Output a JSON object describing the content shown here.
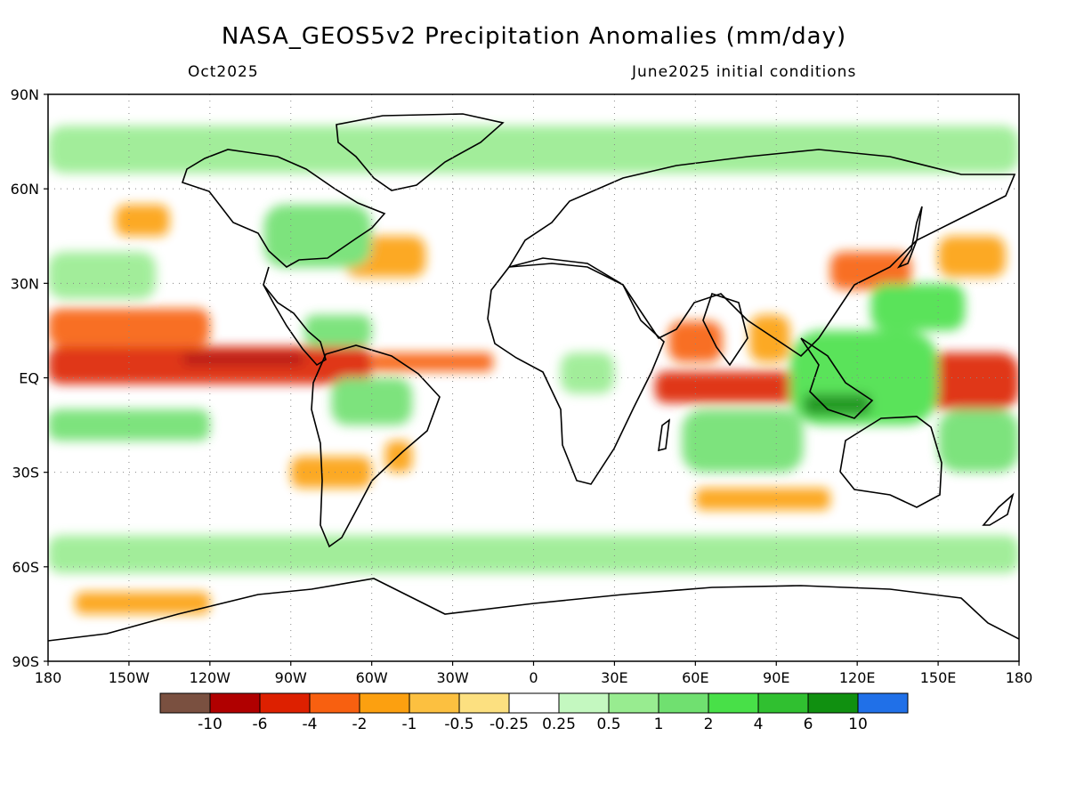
{
  "title": "NASA_GEOS5v2 Precipitation Anomalies (mm/day)",
  "valid_month": "Oct2025",
  "init_note": "June2025 initial conditions",
  "lat_labels": [
    "90N",
    "60N",
    "30N",
    "EQ",
    "30S",
    "60S",
    "90S"
  ],
  "lon_labels": [
    "180",
    "150W",
    "120W",
    "90W",
    "60W",
    "30W",
    "0",
    "30E",
    "60E",
    "90E",
    "120E",
    "150E",
    "180"
  ],
  "colorbar": {
    "colors": [
      "#7a5040",
      "#b00000",
      "#dd2000",
      "#f86010",
      "#fca010",
      "#fcc040",
      "#fce080",
      "#ffffff",
      "#c4f8c0",
      "#98ec90",
      "#70e070",
      "#48e048",
      "#30c030",
      "#109010",
      "#2070e8"
    ],
    "labels": [
      "-10",
      "-6",
      "-4",
      "-2",
      "-1",
      "-0.5",
      "-0.25",
      "0.25",
      "0.5",
      "1",
      "2",
      "4",
      "6",
      "10"
    ]
  },
  "colors": {
    "land_outline": "#000000",
    "grid": "#888888",
    "frame": "#000000"
  },
  "map_data": {
    "projection": "equirectangular",
    "lon_range": [
      -180,
      180
    ],
    "lat_range": [
      -90,
      90
    ],
    "anomaly_regions": [
      {
        "name": "central-pacific-itcz-dry",
        "lon": [
          -180,
          -60
        ],
        "lat": [
          -2,
          10
        ],
        "level": -4
      },
      {
        "name": "east-pacific-itcz-core-dry",
        "lon": [
          -130,
          -85
        ],
        "lat": [
          4,
          8
        ],
        "level": -6
      },
      {
        "name": "north-pacific-subtropical-dry",
        "lon": [
          -180,
          -120
        ],
        "lat": [
          10,
          22
        ],
        "level": -2
      },
      {
        "name": "west-pacific-equatorial-dry",
        "lon": [
          145,
          180
        ],
        "lat": [
          -10,
          8
        ],
        "level": -4
      },
      {
        "name": "atlantic-itcz-dry",
        "lon": [
          -60,
          -15
        ],
        "lat": [
          2,
          8
        ],
        "level": -2
      },
      {
        "name": "western-indian-ocean-dry",
        "lon": [
          45,
          100
        ],
        "lat": [
          -8,
          2
        ],
        "level": -4
      },
      {
        "name": "arabian-sea-dry",
        "lon": [
          50,
          70
        ],
        "lat": [
          5,
          18
        ],
        "level": -2
      },
      {
        "name": "bay-of-bengal-dry",
        "lon": [
          80,
          95
        ],
        "lat": [
          5,
          20
        ],
        "level": -1
      },
      {
        "name": "east-china-japan-dry",
        "lon": [
          110,
          140
        ],
        "lat": [
          28,
          40
        ],
        "level": -2
      },
      {
        "name": "northwest-pacific-dry",
        "lon": [
          150,
          175
        ],
        "lat": [
          32,
          45
        ],
        "level": -1
      },
      {
        "name": "northwest-atlantic-dry",
        "lon": [
          -70,
          -40
        ],
        "lat": [
          32,
          45
        ],
        "level": -1
      },
      {
        "name": "gulf-of-alaska-dry",
        "lon": [
          -155,
          -135
        ],
        "lat": [
          45,
          55
        ],
        "level": -1
      },
      {
        "name": "south-indian-ocean-dry-band",
        "lon": [
          60,
          110
        ],
        "lat": [
          -42,
          -35
        ],
        "level": -1
      },
      {
        "name": "southeast-pacific-dry",
        "lon": [
          -90,
          -60
        ],
        "lat": [
          -35,
          -25
        ],
        "level": -1
      },
      {
        "name": "southern-ocean-pacific-dry",
        "lon": [
          -170,
          -120
        ],
        "lat": [
          -75,
          -68
        ],
        "level": -1
      },
      {
        "name": "south-american-plateau-dry",
        "lon": [
          -55,
          -45
        ],
        "lat": [
          -30,
          -20
        ],
        "level": -1
      },
      {
        "name": "maritime-continent-wet",
        "lon": [
          95,
          150
        ],
        "lat": [
          -15,
          15
        ],
        "level": 2
      },
      {
        "name": "eastern-indian-ocean-wet-core",
        "lon": [
          100,
          125
        ],
        "lat": [
          -12,
          -5
        ],
        "level": 6
      },
      {
        "name": "south-pacific-convergence-wet",
        "lon": [
          150,
          180
        ],
        "lat": [
          -30,
          -10
        ],
        "level": 1
      },
      {
        "name": "west-pacific-subtropical-wet",
        "lon": [
          125,
          160
        ],
        "lat": [
          15,
          30
        ],
        "level": 2
      },
      {
        "name": "south-indian-ocean-wet",
        "lon": [
          55,
          100
        ],
        "lat": [
          -30,
          -10
        ],
        "level": 1
      },
      {
        "name": "north-america-wet",
        "lon": [
          -100,
          -60
        ],
        "lat": [
          35,
          55
        ],
        "level": 1
      },
      {
        "name": "caribbean-wet",
        "lon": [
          -85,
          -60
        ],
        "lat": [
          10,
          20
        ],
        "level": 1
      },
      {
        "name": "south-pacific-wet",
        "lon": [
          -180,
          -120
        ],
        "lat": [
          -20,
          -10
        ],
        "level": 1
      },
      {
        "name": "amazon-wet",
        "lon": [
          -75,
          -45
        ],
        "lat": [
          -15,
          0
        ],
        "level": 1
      },
      {
        "name": "southern-ocean-wet",
        "lon": [
          -180,
          180
        ],
        "lat": [
          -62,
          -50
        ],
        "level": 0.5
      },
      {
        "name": "arctic-wet",
        "lon": [
          -180,
          180
        ],
        "lat": [
          65,
          80
        ],
        "level": 0.5
      },
      {
        "name": "equatorial-africa-wet",
        "lon": [
          10,
          30
        ],
        "lat": [
          -5,
          8
        ],
        "level": 0.5
      },
      {
        "name": "north-pacific-midlat-wet",
        "lon": [
          -180,
          -140
        ],
        "lat": [
          25,
          40
        ],
        "level": 0.5
      }
    ]
  }
}
